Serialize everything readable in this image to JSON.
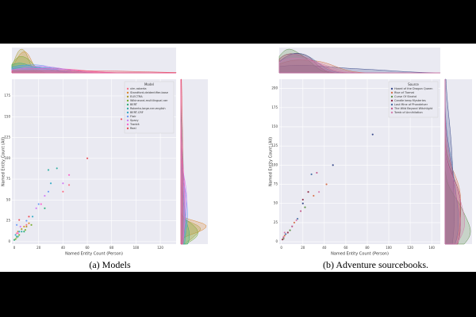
{
  "chart_data": [
    {
      "type": "scatter",
      "caption": "(a) Models",
      "xlabel": "Named Entity Count (Person)",
      "ylabel": "Named Entity Count (All)",
      "legend_title": "Model",
      "legend": "upper right",
      "grid": true,
      "xlim": [
        -2,
        133
      ],
      "xticks": [
        0,
        20,
        40,
        60,
        80,
        100,
        120
      ],
      "ylim": [
        -3,
        195
      ],
      "yticks": [
        0,
        25,
        50,
        75,
        100,
        125,
        150,
        175
      ],
      "series": [
        {
          "name": "xlm-roberta",
          "color": "#f77189",
          "x": [
            2,
            10,
            40,
            45
          ],
          "values": [
            10,
            20,
            60,
            68
          ]
        },
        {
          "name": "Standford-deidentifier-base",
          "color": "#dc8932",
          "x": [
            3,
            8,
            12
          ],
          "values": [
            12,
            18,
            22
          ]
        },
        {
          "name": "ELECTRA",
          "color": "#ae9d31",
          "x": [
            2,
            6,
            10
          ],
          "values": [
            5,
            15,
            18
          ]
        },
        {
          "name": "Wikineural-multilingual-ner",
          "color": "#77ab31",
          "x": [
            1,
            4,
            9,
            14
          ],
          "values": [
            3,
            8,
            14,
            20
          ]
        },
        {
          "name": "BERT",
          "color": "#33b07a",
          "x": [
            0,
            3,
            8,
            25
          ],
          "values": [
            2,
            6,
            12,
            40
          ]
        },
        {
          "name": "Roberta-large-ner-english",
          "color": "#36ada4",
          "x": [
            2,
            6,
            28,
            35
          ],
          "values": [
            6,
            12,
            86,
            88
          ]
        },
        {
          "name": "BERT-CRF",
          "color": "#38a9c5",
          "x": [
            1,
            4,
            15,
            30
          ],
          "values": [
            8,
            12,
            30,
            70
          ]
        },
        {
          "name": "Flair",
          "color": "#6e9bf4",
          "x": [
            2,
            10,
            20,
            28
          ],
          "values": [
            20,
            25,
            45,
            60
          ]
        },
        {
          "name": "Spacy",
          "color": "#cc7af4",
          "x": [
            5,
            18,
            25,
            40
          ],
          "values": [
            18,
            40,
            55,
            70
          ]
        },
        {
          "name": "Trankit",
          "color": "#f565cc",
          "x": [
            3,
            22,
            45
          ],
          "values": [
            10,
            45,
            80
          ]
        },
        {
          "name": "Real",
          "color": "#e8505b",
          "x": [
            4,
            12,
            60,
            88
          ],
          "values": [
            26,
            30,
            100,
            147
          ]
        }
      ]
    },
    {
      "type": "scatter",
      "caption": "(b) Adventure sourcebooks.",
      "xlabel": "Named Entity Count (Person)",
      "ylabel": "Named Entity Count (All)",
      "legend_title": "Source",
      "legend": "upper right",
      "grid": true,
      "xlim": [
        -2,
        148
      ],
      "xticks": [
        0,
        20,
        40,
        60,
        80,
        100,
        120,
        140
      ],
      "ylim": [
        -3,
        212
      ],
      "yticks": [
        0,
        25,
        50,
        75,
        100,
        125,
        150,
        175,
        200
      ],
      "series": [
        {
          "name": "Hoard of the Dragon Queen",
          "color": "#3b4b8c",
          "x": [
            2,
            10,
            20,
            48,
            85
          ],
          "values": [
            5,
            20,
            50,
            100,
            140
          ]
        },
        {
          "name": "Rise of Tiamat",
          "color": "#d4714e",
          "x": [
            3,
            12,
            30,
            42
          ],
          "values": [
            8,
            25,
            60,
            75
          ]
        },
        {
          "name": "Curse Of Strahd",
          "color": "#5e8f4a",
          "x": [
            2,
            8,
            22
          ],
          "values": [
            4,
            15,
            45
          ]
        },
        {
          "name": "Candle keep Mysteries",
          "color": "#8c2f4a",
          "x": [
            1,
            6,
            20,
            25
          ],
          "values": [
            3,
            12,
            55,
            65
          ]
        },
        {
          "name": "Lost Mine of Phandelver",
          "color": "#4a6fa5",
          "x": [
            4,
            15,
            28
          ],
          "values": [
            10,
            30,
            88
          ]
        },
        {
          "name": "The Wild Beyond Witchlight",
          "color": "#c05a8a",
          "x": [
            2,
            10,
            18,
            33
          ],
          "values": [
            6,
            20,
            40,
            90
          ]
        },
        {
          "name": "Tomb of Annihilation",
          "color": "#d47fb0",
          "x": [
            3,
            14,
            35
          ],
          "values": [
            12,
            28,
            65
          ]
        }
      ]
    }
  ]
}
